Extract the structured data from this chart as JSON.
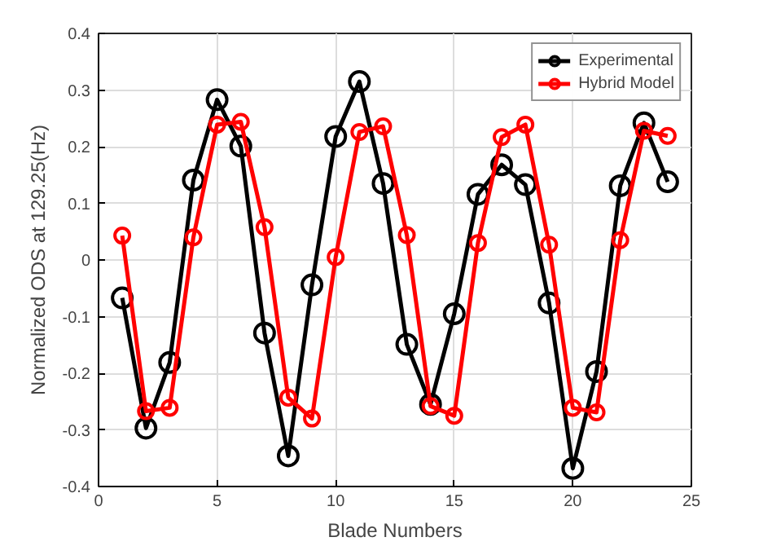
{
  "chart_data": {
    "type": "line",
    "xlabel": "Blade Numbers",
    "ylabel": "Normalized ODS at 129.25(Hz)",
    "x": [
      1,
      2,
      3,
      4,
      5,
      6,
      7,
      8,
      9,
      10,
      11,
      12,
      13,
      14,
      15,
      16,
      17,
      18,
      19,
      20,
      21,
      22,
      23,
      24
    ],
    "series": [
      {
        "name": "Experimental",
        "color": "#000000",
        "values": [
          -0.067,
          -0.297,
          -0.181,
          0.141,
          0.283,
          0.201,
          -0.129,
          -0.346,
          -0.044,
          0.218,
          0.315,
          0.135,
          -0.149,
          -0.255,
          -0.095,
          0.116,
          0.168,
          0.133,
          -0.076,
          -0.368,
          -0.197,
          0.131,
          0.242,
          0.138
        ]
      },
      {
        "name": "Hybrid Model",
        "color": "#ff0000",
        "values": [
          0.043,
          -0.267,
          -0.261,
          0.04,
          0.239,
          0.244,
          0.058,
          -0.243,
          -0.28,
          0.005,
          0.226,
          0.236,
          0.044,
          -0.258,
          -0.275,
          0.03,
          0.217,
          0.239,
          0.027,
          -0.261,
          -0.269,
          0.035,
          0.228,
          0.219
        ]
      }
    ],
    "xlim": [
      0,
      25
    ],
    "xticks": [
      0,
      5,
      10,
      15,
      20,
      25
    ],
    "ylim": [
      -0.4,
      0.4
    ],
    "yticks": [
      -0.4,
      -0.3,
      -0.2,
      -0.1,
      0,
      0.1,
      0.2,
      0.3,
      0.4
    ],
    "grid": true,
    "legend": "top right",
    "marker": "circle",
    "line_style": "solid"
  }
}
